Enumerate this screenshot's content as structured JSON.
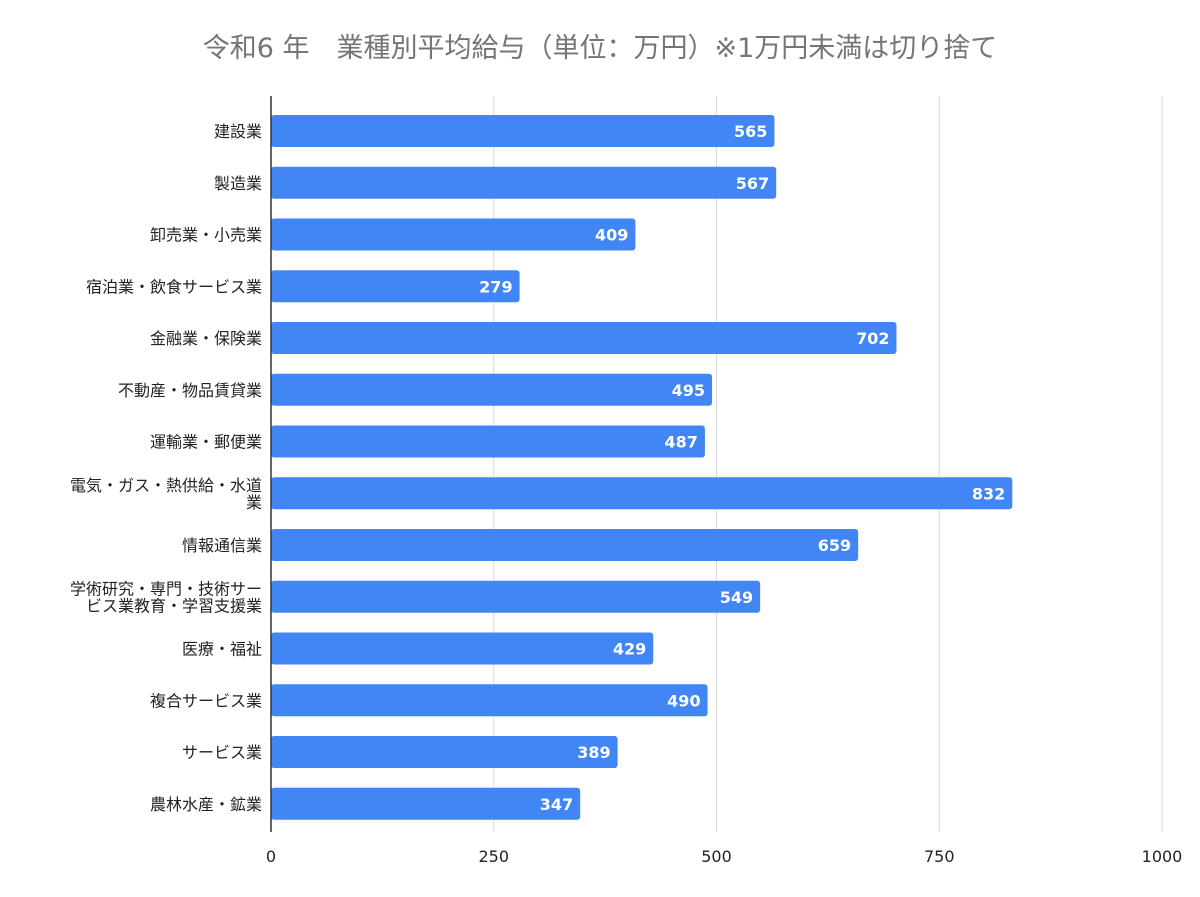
{
  "chart_data": {
    "type": "bar",
    "orientation": "horizontal",
    "title": "令和6 年　業種別平均給与（単位：万円）※1万円未満は切り捨て",
    "categories": [
      "建設業",
      "製造業",
      "卸売業・小売業",
      "宿泊業・飲食サービス業",
      "金融業・保険業",
      "不動産・物品賃貸業",
      "運輸業・郵便業",
      "電気・ガス・熱供給・水道業",
      "情報通信業",
      "学術研究・専門・技術サービス業教育・学習支援業",
      "医療・福祉",
      "複合サービス業",
      "サービス業",
      "農林水産・鉱業"
    ],
    "category_lines": [
      [
        "建設業"
      ],
      [
        "製造業"
      ],
      [
        "卸売業・小売業"
      ],
      [
        "宿泊業・飲食サービス業"
      ],
      [
        "金融業・保険業"
      ],
      [
        "不動産・物品賃貸業"
      ],
      [
        "運輸業・郵便業"
      ],
      [
        "電気・ガス・熱供給・水道",
        "業"
      ],
      [
        "情報通信業"
      ],
      [
        "学術研究・専門・技術サー",
        "ビス業教育・学習支援業"
      ],
      [
        "医療・福祉"
      ],
      [
        "複合サービス業"
      ],
      [
        "サービス業"
      ],
      [
        "農林水産・鉱業"
      ]
    ],
    "values": [
      565,
      567,
      409,
      279,
      702,
      495,
      487,
      832,
      659,
      549,
      429,
      490,
      389,
      347
    ],
    "xlim": [
      0,
      1000
    ],
    "xticks": [
      0,
      250,
      500,
      750,
      1000
    ],
    "xtick_labels": [
      "0",
      "250",
      "500",
      "750",
      "1000"
    ],
    "xlabel": "",
    "ylabel": "",
    "grid": "vertical",
    "data_labels": true,
    "legend": "none",
    "bar_color": "#4285f4"
  }
}
